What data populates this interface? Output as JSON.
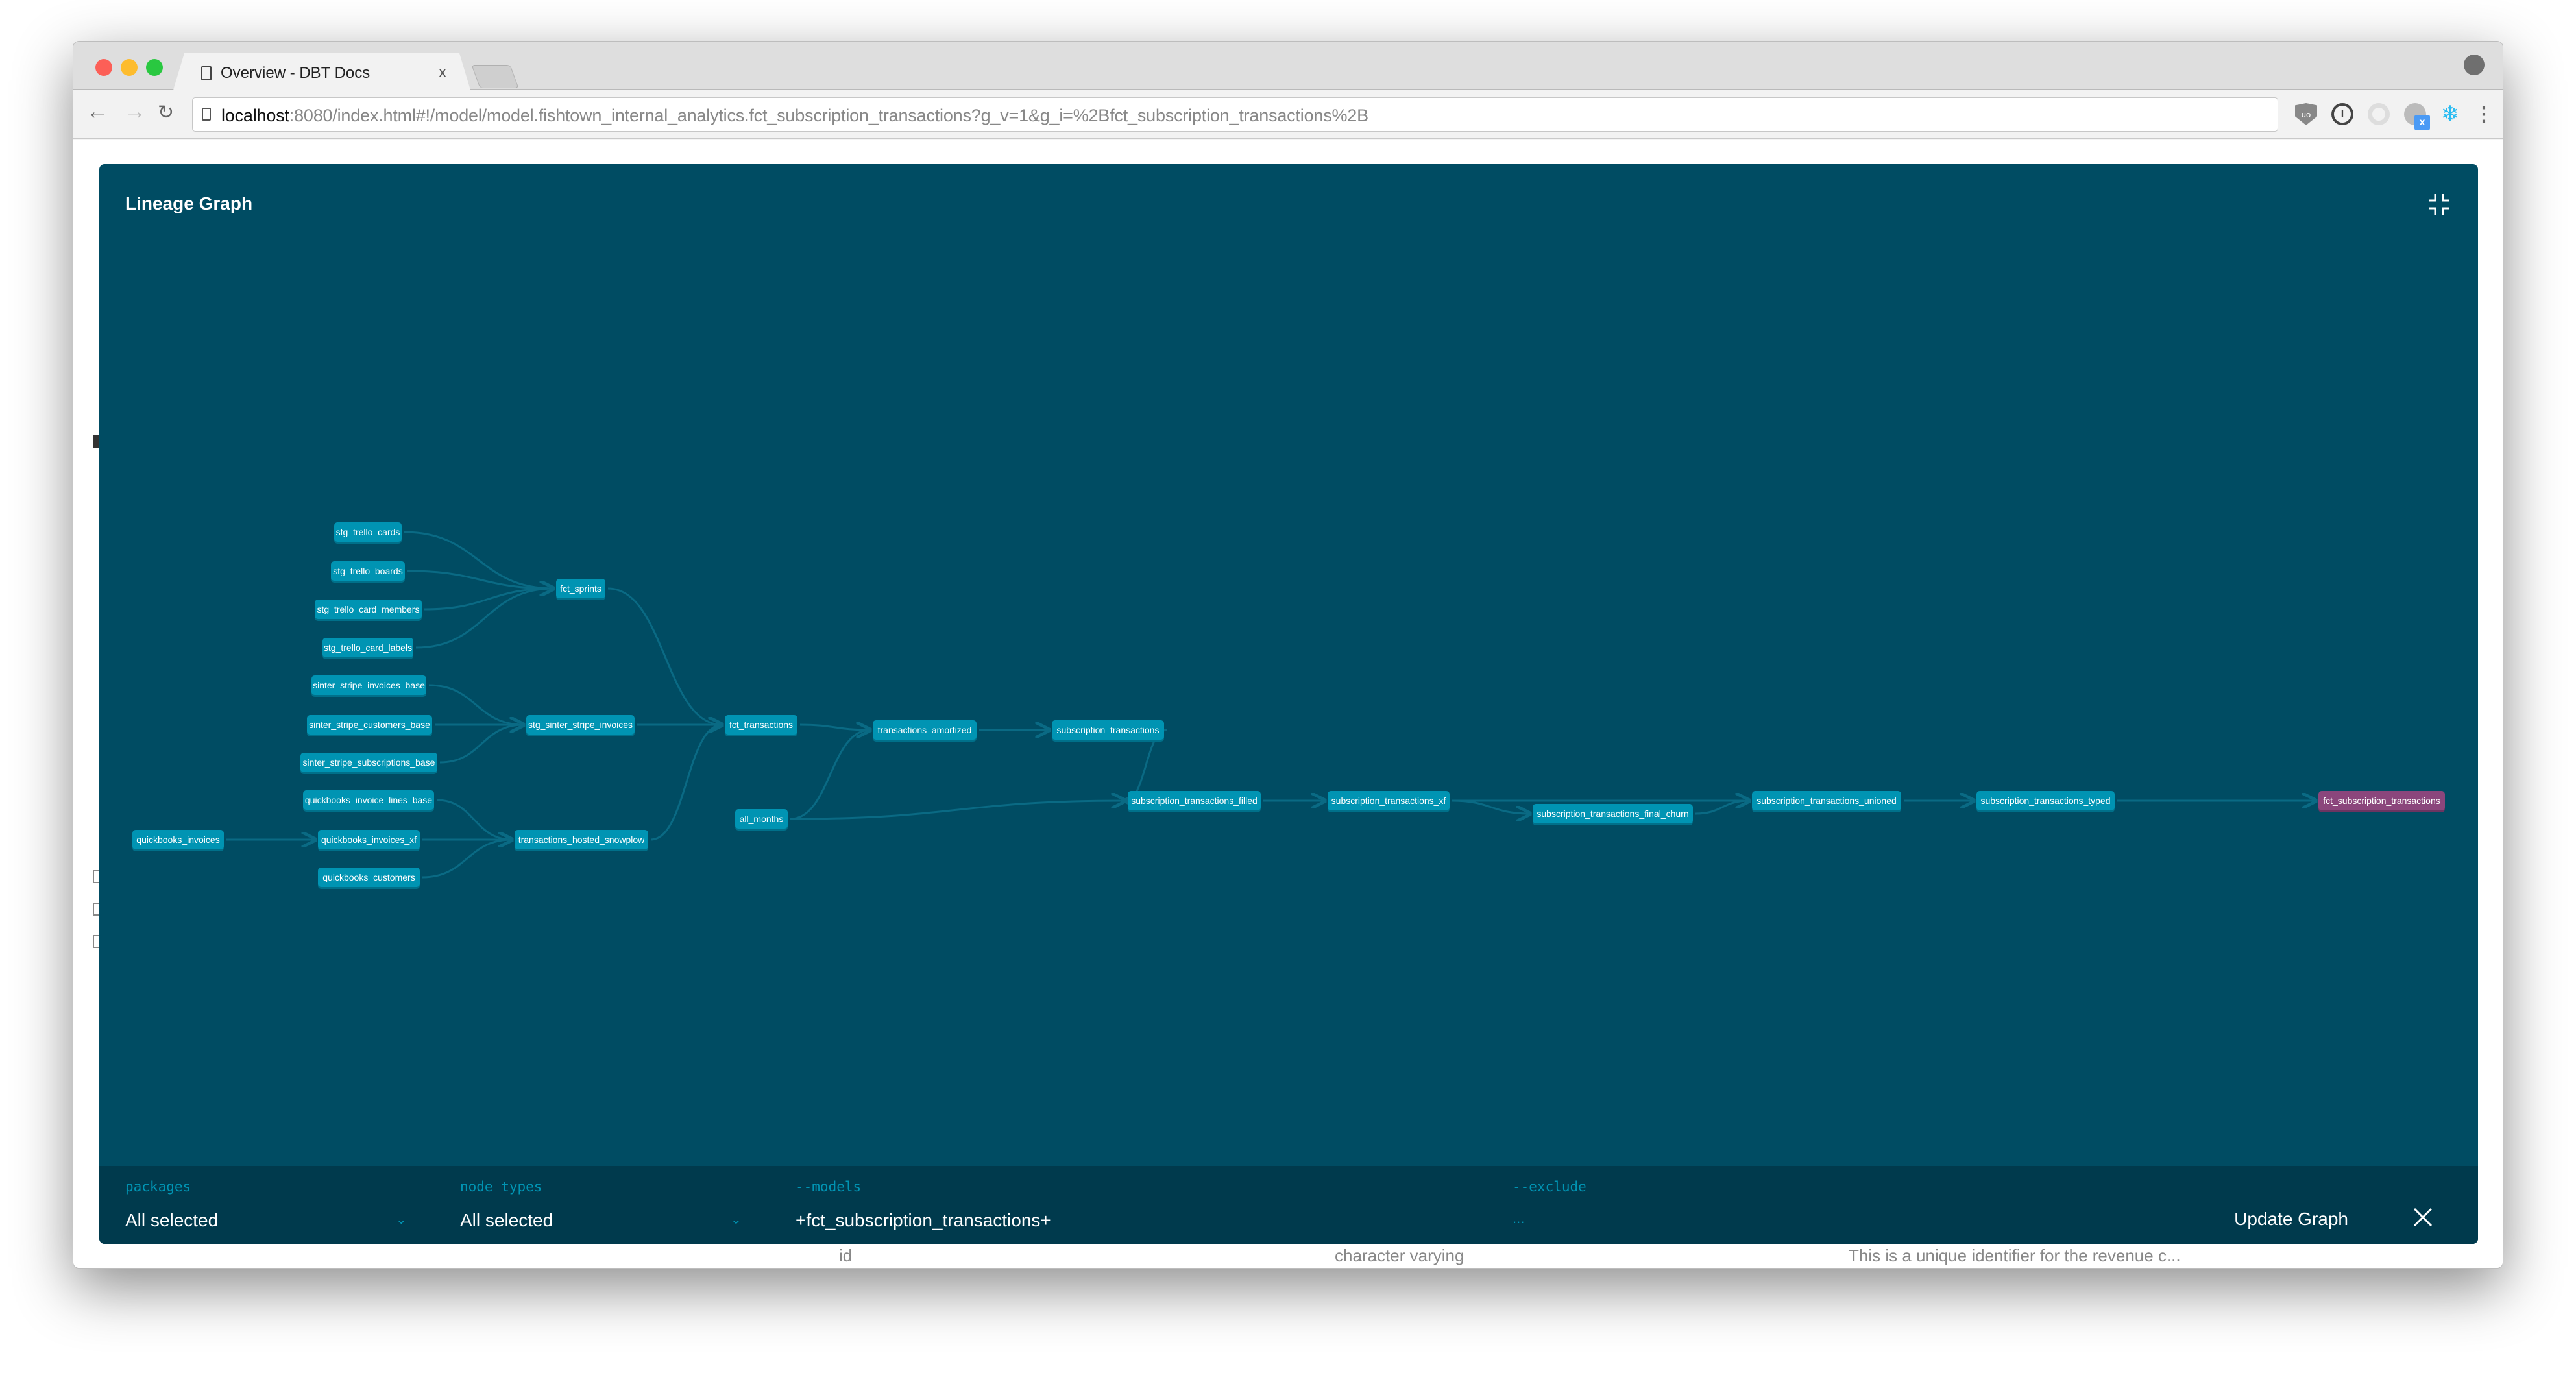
{
  "browser": {
    "tab_title": "Overview - DBT Docs",
    "tab_close": "x",
    "url_host": "localhost",
    "url_rest": ":8080/index.html#!/model/model.fishtown_internal_analytics.fct_subscription_transactions?g_v=1&g_i=%2Bfct_subscription_transactions%2B",
    "extensions": [
      "ublock-icon",
      "1password-icon",
      "opera-icon",
      "toggl-icon",
      "snowflake-icon",
      "menu-icon"
    ],
    "ext_badge": "x"
  },
  "background_page": {
    "col_id": "id",
    "col_type": "character varying",
    "col_desc": "This is a unique identifier for the revenue c..."
  },
  "modal": {
    "title": "Lineage Graph"
  },
  "colors": {
    "background": "#004c63",
    "node": "#0094b3",
    "selected_node": "#8b467c",
    "edge": "#0a6a84",
    "footer": "#003a4d"
  },
  "graph": {
    "nodes": [
      {
        "id": "stg_trello_cards",
        "label": "stg_trello_cards"
      },
      {
        "id": "stg_trello_boards",
        "label": "stg_trello_boards"
      },
      {
        "id": "stg_trello_card_members",
        "label": "stg_trello_card_members"
      },
      {
        "id": "stg_trello_card_labels",
        "label": "stg_trello_card_labels"
      },
      {
        "id": "sinter_stripe_invoices_base",
        "label": "sinter_stripe_invoices_base"
      },
      {
        "id": "sinter_stripe_customers_base",
        "label": "sinter_stripe_customers_base"
      },
      {
        "id": "sinter_stripe_subscriptions_base",
        "label": "sinter_stripe_subscriptions_base"
      },
      {
        "id": "quickbooks_invoice_lines_base",
        "label": "quickbooks_invoice_lines_base"
      },
      {
        "id": "quickbooks_invoices",
        "label": "quickbooks_invoices"
      },
      {
        "id": "quickbooks_invoices_xf",
        "label": "quickbooks_invoices_xf"
      },
      {
        "id": "quickbooks_customers",
        "label": "quickbooks_customers"
      },
      {
        "id": "fct_sprints",
        "label": "fct_sprints"
      },
      {
        "id": "stg_sinter_stripe_invoices",
        "label": "stg_sinter_stripe_invoices"
      },
      {
        "id": "transactions_hosted_snowplow",
        "label": "transactions_hosted_snowplow"
      },
      {
        "id": "fct_transactions",
        "label": "fct_transactions"
      },
      {
        "id": "all_months",
        "label": "all_months"
      },
      {
        "id": "transactions_amortized",
        "label": "transactions_amortized"
      },
      {
        "id": "subscription_transactions",
        "label": "subscription_transactions"
      },
      {
        "id": "subscription_transactions_filled",
        "label": "subscription_transactions_filled"
      },
      {
        "id": "subscription_transactions_xf",
        "label": "subscription_transactions_xf"
      },
      {
        "id": "subscription_transactions_final_churn",
        "label": "subscription_transactions_final_churn"
      },
      {
        "id": "subscription_transactions_unioned",
        "label": "subscription_transactions_unioned"
      },
      {
        "id": "subscription_transactions_typed",
        "label": "subscription_transactions_typed"
      },
      {
        "id": "fct_subscription_transactions",
        "label": "fct_subscription_transactions",
        "selected": true
      }
    ],
    "edges": [
      [
        "stg_trello_cards",
        "fct_sprints"
      ],
      [
        "stg_trello_boards",
        "fct_sprints"
      ],
      [
        "stg_trello_card_members",
        "fct_sprints"
      ],
      [
        "stg_trello_card_labels",
        "fct_sprints"
      ],
      [
        "sinter_stripe_invoices_base",
        "stg_sinter_stripe_invoices"
      ],
      [
        "sinter_stripe_customers_base",
        "stg_sinter_stripe_invoices"
      ],
      [
        "sinter_stripe_subscriptions_base",
        "stg_sinter_stripe_invoices"
      ],
      [
        "quickbooks_invoice_lines_base",
        "transactions_hosted_snowplow"
      ],
      [
        "quickbooks_invoices_xf",
        "transactions_hosted_snowplow"
      ],
      [
        "quickbooks_customers",
        "transactions_hosted_snowplow"
      ],
      [
        "quickbooks_invoices",
        "quickbooks_invoices_xf"
      ],
      [
        "fct_sprints",
        "fct_transactions"
      ],
      [
        "stg_sinter_stripe_invoices",
        "fct_transactions"
      ],
      [
        "transactions_hosted_snowplow",
        "fct_transactions"
      ],
      [
        "fct_transactions",
        "transactions_amortized"
      ],
      [
        "all_months",
        "transactions_amortized"
      ],
      [
        "all_months",
        "subscription_transactions_filled"
      ],
      [
        "transactions_amortized",
        "subscription_transactions"
      ],
      [
        "subscription_transactions",
        "subscription_transactions_filled"
      ],
      [
        "subscription_transactions_filled",
        "subscription_transactions_xf"
      ],
      [
        "subscription_transactions_xf",
        "subscription_transactions_final_churn"
      ],
      [
        "subscription_transactions_xf",
        "subscription_transactions_unioned"
      ],
      [
        "subscription_transactions_final_churn",
        "subscription_transactions_unioned"
      ],
      [
        "subscription_transactions_unioned",
        "subscription_transactions_typed"
      ],
      [
        "subscription_transactions_typed",
        "fct_subscription_transactions"
      ]
    ]
  },
  "footer": {
    "packages_label": "packages",
    "packages_value": "All selected",
    "node_types_label": "node types",
    "node_types_value": "All selected",
    "models_label": "--models",
    "models_value": "+fct_subscription_transactions+",
    "exclude_label": "--exclude",
    "exclude_placeholder": "...",
    "update_label": "Update Graph"
  }
}
